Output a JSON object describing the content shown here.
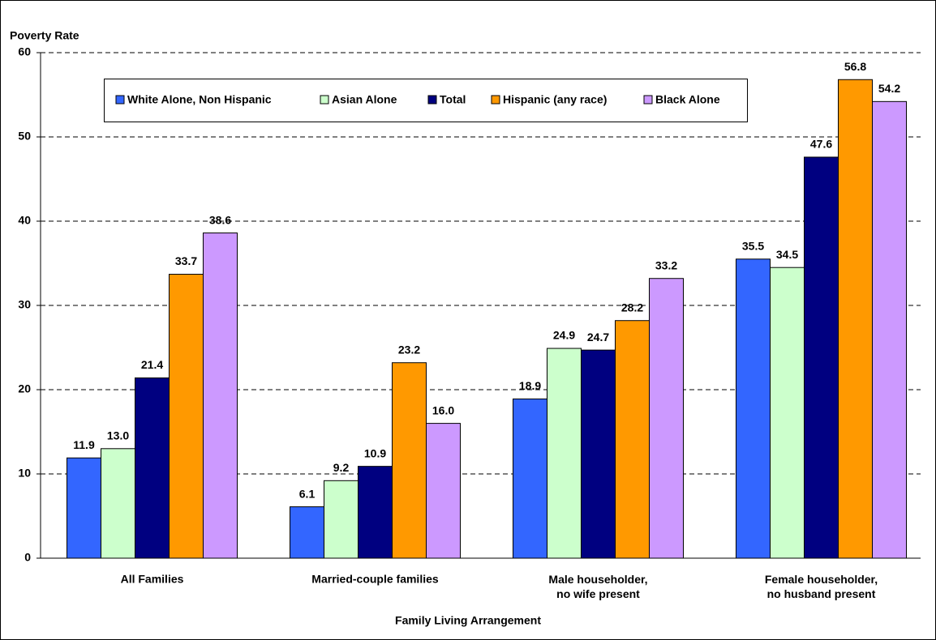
{
  "chart_data": {
    "type": "bar",
    "y_label": "Poverty Rate",
    "x_label": "Family Living Arrangement",
    "categories": [
      "All Families",
      "Married-couple families",
      "Male householder,\nno wife present",
      "Female householder,\nno husband present"
    ],
    "series": [
      {
        "name": "White Alone, Non Hispanic",
        "color": "#3366ff",
        "values": [
          11.9,
          6.1,
          18.9,
          35.5
        ],
        "value_labels": [
          "11.9",
          "6.1",
          "18.9",
          "35.5"
        ]
      },
      {
        "name": "Asian Alone",
        "color": "#ccffcc",
        "values": [
          13.0,
          9.2,
          24.9,
          34.5
        ],
        "value_labels": [
          "13.0",
          "9.2",
          "24.9",
          "34.5"
        ]
      },
      {
        "name": "Total",
        "color": "#000080",
        "values": [
          21.4,
          10.9,
          24.7,
          47.6
        ],
        "value_labels": [
          "21.4",
          "10.9",
          "24.7",
          "47.6"
        ]
      },
      {
        "name": "Hispanic (any race)",
        "color": "#ff9900",
        "values": [
          33.7,
          23.2,
          28.2,
          56.8
        ],
        "value_labels": [
          "33.7",
          "23.2",
          "28.2",
          "56.8"
        ]
      },
      {
        "name": "Black Alone",
        "color": "#cc99ff",
        "values": [
          38.6,
          16.0,
          33.2,
          54.2
        ],
        "value_labels": [
          "38.6",
          "16.0",
          "33.2",
          "54.2"
        ]
      }
    ],
    "ylim": [
      0,
      60
    ],
    "yticks": [
      0,
      10,
      20,
      30,
      40,
      50,
      60
    ],
    "grid": true
  }
}
